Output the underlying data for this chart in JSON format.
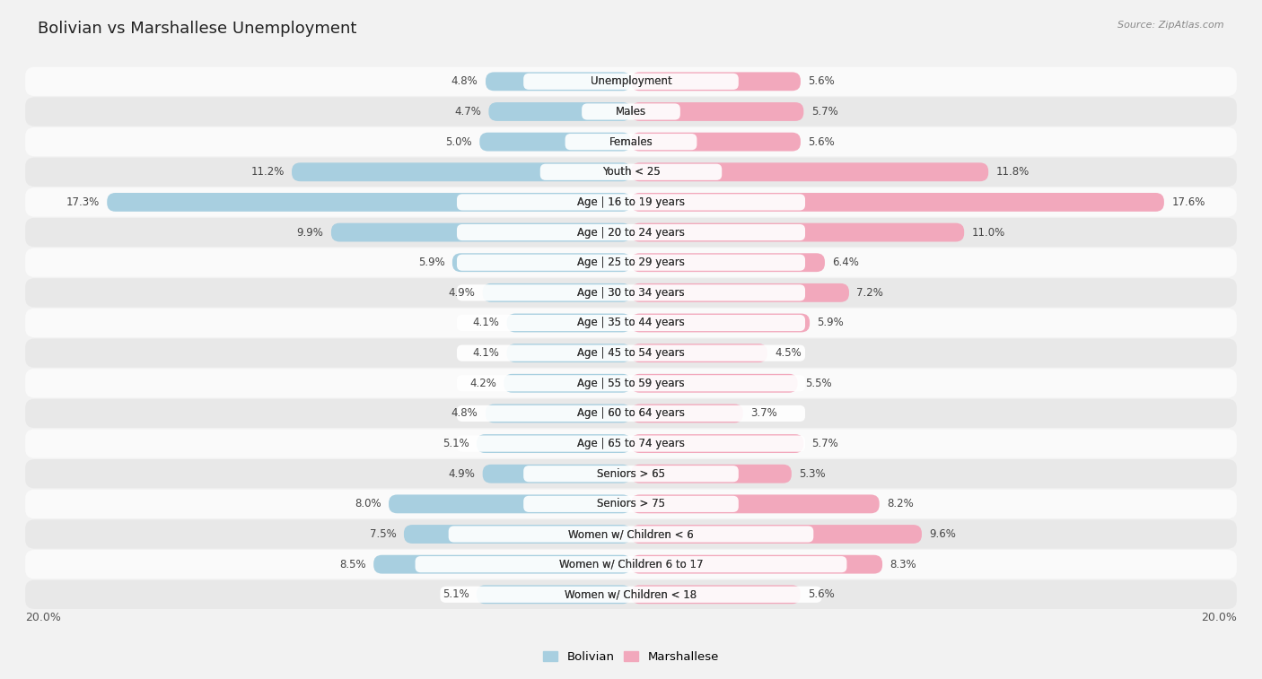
{
  "title": "Bolivian vs Marshallese Unemployment",
  "source": "Source: ZipAtlas.com",
  "categories": [
    "Unemployment",
    "Males",
    "Females",
    "Youth < 25",
    "Age | 16 to 19 years",
    "Age | 20 to 24 years",
    "Age | 25 to 29 years",
    "Age | 30 to 34 years",
    "Age | 35 to 44 years",
    "Age | 45 to 54 years",
    "Age | 55 to 59 years",
    "Age | 60 to 64 years",
    "Age | 65 to 74 years",
    "Seniors > 65",
    "Seniors > 75",
    "Women w/ Children < 6",
    "Women w/ Children 6 to 17",
    "Women w/ Children < 18"
  ],
  "bolivian": [
    4.8,
    4.7,
    5.0,
    11.2,
    17.3,
    9.9,
    5.9,
    4.9,
    4.1,
    4.1,
    4.2,
    4.8,
    5.1,
    4.9,
    8.0,
    7.5,
    8.5,
    5.1
  ],
  "marshallese": [
    5.6,
    5.7,
    5.6,
    11.8,
    17.6,
    11.0,
    6.4,
    7.2,
    5.9,
    4.5,
    5.5,
    3.7,
    5.7,
    5.3,
    8.2,
    9.6,
    8.3,
    5.6
  ],
  "bolivian_color": "#a8cfe0",
  "marshallese_color": "#f2a8bc",
  "bg_color": "#f2f2f2",
  "row_bg_light": "#fafafa",
  "row_bg_dark": "#e8e8e8",
  "max_val": 20.0,
  "legend_bolivian": "Bolivian",
  "legend_marshallese": "Marshallese",
  "bar_height": 0.62,
  "title_fontsize": 13,
  "label_fontsize": 8.5,
  "value_fontsize": 8.5
}
